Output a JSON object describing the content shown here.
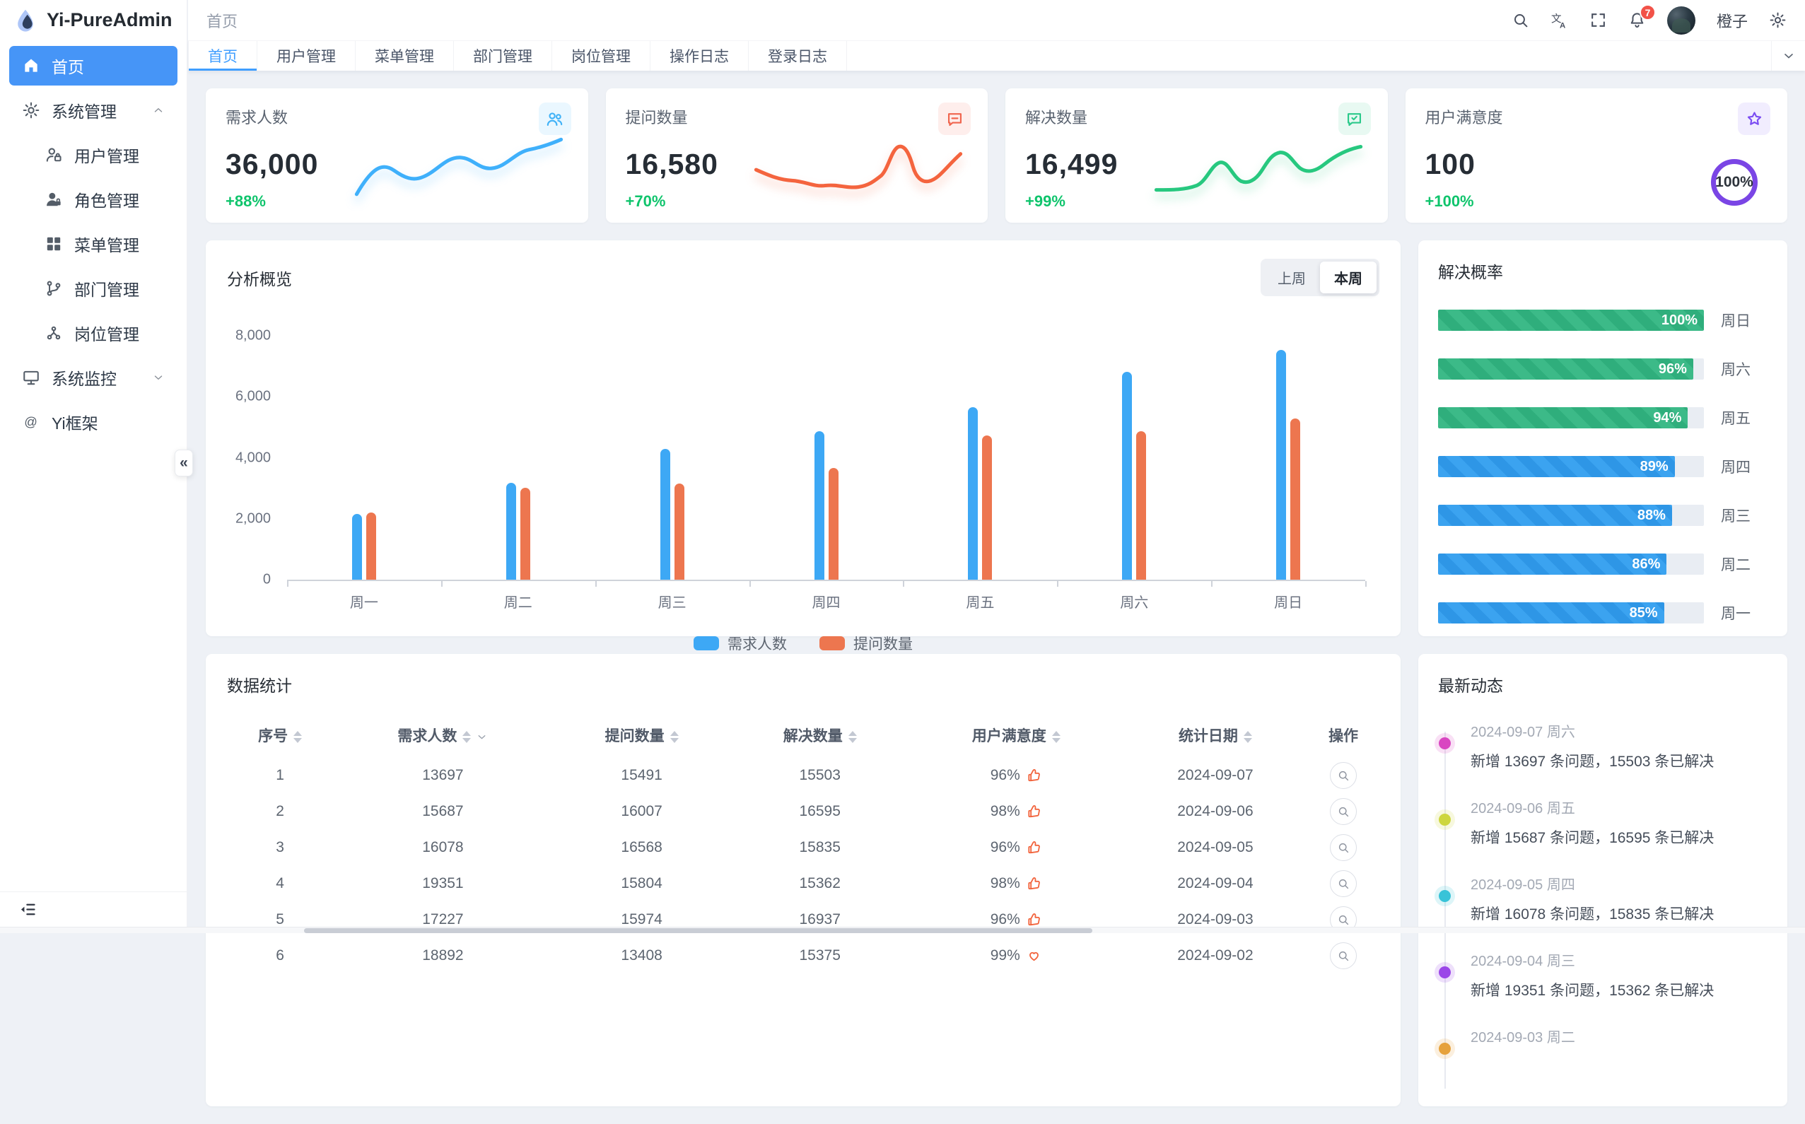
{
  "app": {
    "title": "Yi-PureAdmin",
    "breadcrumb": "首页",
    "user_name": "橙子",
    "notification_count": "7"
  },
  "colors": {
    "primary": "#409eff",
    "sidebar_active": "#4695f7",
    "success_text": "#0fc46c",
    "badge_red": "#f25248",
    "bar_blue": "#3da8f5",
    "bar_orange": "#ed764f",
    "progress_green": "#3cba88",
    "progress_blue": "#3ba3f0"
  },
  "sidebar": {
    "items": [
      {
        "label": "首页",
        "icon": "home-icon",
        "level": 1,
        "active": true
      },
      {
        "label": "系统管理",
        "icon": "gear-icon",
        "level": 1,
        "chevron": "up"
      },
      {
        "label": "用户管理",
        "icon": "user-lock-icon",
        "level": 2
      },
      {
        "label": "角色管理",
        "icon": "user-filled-icon",
        "level": 2
      },
      {
        "label": "菜单管理",
        "icon": "grid-icon",
        "level": 2
      },
      {
        "label": "部门管理",
        "icon": "branch-icon",
        "level": 2
      },
      {
        "label": "岗位管理",
        "icon": "share-nodes-icon",
        "level": 2
      },
      {
        "label": "系统监控",
        "icon": "monitor-icon",
        "level": 1,
        "chevron": "down"
      },
      {
        "label": "Yi框架",
        "icon": "at-icon",
        "level": 1
      }
    ]
  },
  "tabs": {
    "items": [
      "首页",
      "用户管理",
      "菜单管理",
      "部门管理",
      "岗位管理",
      "操作日志",
      "登录日志"
    ],
    "active": "首页"
  },
  "stat_cards": [
    {
      "title": "需求人数",
      "value": "36,000",
      "delta": "+88%",
      "icon": "users-icon",
      "icon_color": "#41b2f7",
      "icon_bg": "#eaf7ff",
      "spark": "blue"
    },
    {
      "title": "提问数量",
      "value": "16,580",
      "delta": "+70%",
      "icon": "chat-icon",
      "icon_color": "#f0654e",
      "icon_bg": "#feeeec",
      "spark": "orange"
    },
    {
      "title": "解决数量",
      "value": "16,499",
      "delta": "+99%",
      "icon": "message-check-icon",
      "icon_color": "#2bc98a",
      "icon_bg": "#e8f9f2",
      "spark": "green"
    },
    {
      "title": "用户满意度",
      "value": "100",
      "delta": "+100%",
      "icon": "star-icon",
      "icon_color": "#7b4df2",
      "icon_bg": "#f1edfe",
      "ring_label": "100%",
      "ring_color": "#7a45e5"
    }
  ],
  "overview": {
    "title": "分析概览",
    "toggles": [
      "上周",
      "本周"
    ],
    "active_toggle": "本周"
  },
  "chart_data": {
    "type": "bar",
    "title": "分析概览",
    "categories": [
      "周一",
      "周二",
      "周三",
      "周四",
      "周五",
      "周六",
      "周日"
    ],
    "series": [
      {
        "name": "需求人数",
        "color": "#3da8f5",
        "values": [
          2150,
          3180,
          4300,
          4860,
          5660,
          6820,
          7530
        ]
      },
      {
        "name": "提问数量",
        "color": "#ed764f",
        "values": [
          2200,
          3020,
          3150,
          3660,
          4720,
          4880,
          5280
        ]
      }
    ],
    "ylim": [
      0,
      8000
    ],
    "yticks": [
      "0",
      "2,000",
      "4,000",
      "6,000",
      "8,000"
    ],
    "grid": false,
    "legend_position": "bottom"
  },
  "solve_rate": {
    "title": "解决概率",
    "rows": [
      {
        "day": "周日",
        "pct": 100,
        "color": "#3cba88",
        "stripe": "#2fae7c"
      },
      {
        "day": "周六",
        "pct": 96,
        "color": "#3cba88",
        "stripe": "#2fae7c"
      },
      {
        "day": "周五",
        "pct": 94,
        "color": "#3cba88",
        "stripe": "#2fae7c"
      },
      {
        "day": "周四",
        "pct": 89,
        "color": "#3ba3f0",
        "stripe": "#2e96e6"
      },
      {
        "day": "周三",
        "pct": 88,
        "color": "#3ba3f0",
        "stripe": "#2e96e6"
      },
      {
        "day": "周二",
        "pct": 86,
        "color": "#3ba3f0",
        "stripe": "#2e96e6"
      },
      {
        "day": "周一",
        "pct": 85,
        "color": "#3ba3f0",
        "stripe": "#2e96e6"
      }
    ]
  },
  "stats_table": {
    "title": "数据统计",
    "columns": [
      "序号",
      "需求人数",
      "提问数量",
      "解决数量",
      "用户满意度",
      "统计日期",
      "操作"
    ],
    "rows": [
      {
        "index": "1",
        "demand": "13697",
        "questions": "15491",
        "solved": "15503",
        "satisfaction": "96%",
        "sat_icon": "thumb-up-icon",
        "date": "2024-09-07"
      },
      {
        "index": "2",
        "demand": "15687",
        "questions": "16007",
        "solved": "16595",
        "satisfaction": "98%",
        "sat_icon": "thumb-up-icon",
        "date": "2024-09-06"
      },
      {
        "index": "3",
        "demand": "16078",
        "questions": "16568",
        "solved": "15835",
        "satisfaction": "96%",
        "sat_icon": "thumb-up-icon",
        "date": "2024-09-05"
      },
      {
        "index": "4",
        "demand": "19351",
        "questions": "15804",
        "solved": "15362",
        "satisfaction": "98%",
        "sat_icon": "thumb-up-icon",
        "date": "2024-09-04"
      },
      {
        "index": "5",
        "demand": "17227",
        "questions": "15974",
        "solved": "16937",
        "satisfaction": "96%",
        "sat_icon": "thumb-up-icon",
        "date": "2024-09-03"
      },
      {
        "index": "6",
        "demand": "18892",
        "questions": "13408",
        "solved": "15375",
        "satisfaction": "99%",
        "sat_icon": "heart-icon",
        "date": "2024-09-02"
      }
    ]
  },
  "activity": {
    "title": "最新动态",
    "items": [
      {
        "date": "2024-09-07 周六",
        "text": "新增 13697 条问题，15503 条已解决",
        "dot_color": "#d946c1"
      },
      {
        "date": "2024-09-06 周五",
        "text": "新增 15687 条问题，16595 条已解决",
        "dot_color": "#cdd63e"
      },
      {
        "date": "2024-09-05 周四",
        "text": "新增 16078 条问题，15835 条已解决",
        "dot_color": "#38c3d8"
      },
      {
        "date": "2024-09-04 周三",
        "text": "新增 19351 条问题，15362 条已解决",
        "dot_color": "#9b46e8"
      },
      {
        "date": "2024-09-03 周二",
        "text": "",
        "dot_color": "#e6a23c"
      }
    ]
  }
}
